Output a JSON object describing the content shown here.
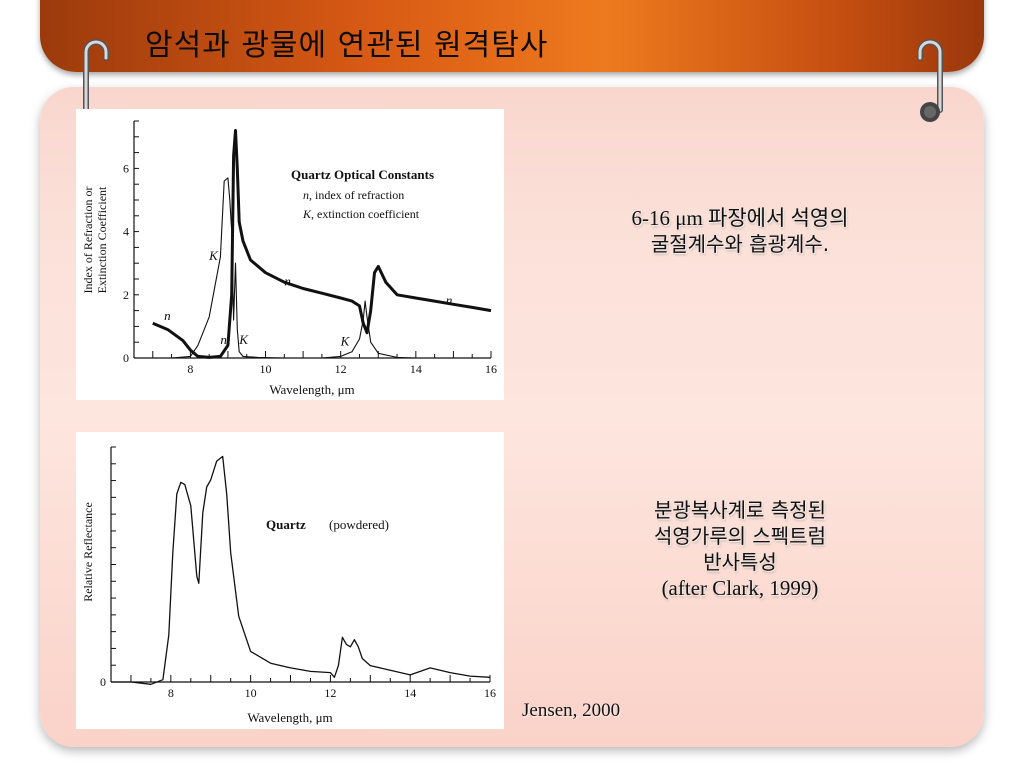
{
  "slide": {
    "title": "암석과 광물에 연관된 원격탐사",
    "caption1_line1": "6-16 μm 파장에서 석영의",
    "caption1_line2": "굴절계수와 흡광계수.",
    "caption2_line1": "분광복사계로 측정된",
    "caption2_line2": "석영가루의 스펙트럼",
    "caption2_line3": "반사특성",
    "caption2_line4": "(after Clark, 1999)",
    "credit": "Jensen, 2000"
  },
  "chart_data": [
    {
      "type": "line",
      "title": "Quartz Optical Constants",
      "legend_n": ", index of refraction",
      "legend_k": ", extinction coefficient",
      "legend_n_symbol": "n",
      "legend_k_symbol": "K",
      "ylabel_line1": "Index of Refraction or",
      "ylabel_line2": "Extinction Coefficient",
      "xlabel": "Wavelength, μm",
      "xlim": [
        6.5,
        16
      ],
      "ylim": [
        0,
        7.5
      ],
      "xticks": [
        8,
        10,
        12,
        14,
        16
      ],
      "yticks": [
        0,
        2,
        4,
        6
      ],
      "curve_labels": [
        {
          "text": "n",
          "x": 7.3,
          "y": 1.2
        },
        {
          "text": "K",
          "x": 8.5,
          "y": 3.1
        },
        {
          "text": "n",
          "x": 8.8,
          "y": 0.45
        },
        {
          "text": "K",
          "x": 9.3,
          "y": 0.45
        },
        {
          "text": "n",
          "x": 10.5,
          "y": 2.3
        },
        {
          "text": "K",
          "x": 12.0,
          "y": 0.4
        },
        {
          "text": "n",
          "x": 14.8,
          "y": 1.7
        }
      ],
      "series": [
        {
          "name": "n",
          "x": [
            7.0,
            7.4,
            7.8,
            8.0,
            8.2,
            8.5,
            8.8,
            9.0,
            9.1,
            9.15,
            9.2,
            9.25,
            9.3,
            9.4,
            9.6,
            10.0,
            10.5,
            11.0,
            11.5,
            12.0,
            12.3,
            12.5,
            12.6,
            12.7,
            12.8,
            12.9,
            13.0,
            13.2,
            13.5,
            14.0,
            14.5,
            15.0,
            15.5,
            16.0
          ],
          "values": [
            1.1,
            0.9,
            0.55,
            0.25,
            0.05,
            0.02,
            0.05,
            0.4,
            2.0,
            6.4,
            7.2,
            6.0,
            4.3,
            3.7,
            3.1,
            2.7,
            2.4,
            2.2,
            2.05,
            1.9,
            1.8,
            1.65,
            1.1,
            0.8,
            1.5,
            2.7,
            2.9,
            2.4,
            2.0,
            1.9,
            1.8,
            1.7,
            1.6,
            1.5
          ]
        },
        {
          "name": "K",
          "x": [
            7.5,
            8.0,
            8.2,
            8.5,
            8.8,
            8.9,
            9.0,
            9.05,
            9.1,
            9.15,
            9.2,
            9.25,
            9.3,
            9.4,
            9.8,
            10.5,
            11.5,
            12.0,
            12.3,
            12.5,
            12.6,
            12.65,
            12.7,
            12.8,
            13.0,
            13.5,
            14.0
          ],
          "values": [
            0.0,
            0.05,
            0.4,
            1.3,
            3.2,
            5.6,
            5.7,
            5.0,
            4.0,
            1.2,
            3.0,
            0.9,
            0.2,
            0.05,
            0.02,
            0.0,
            0.0,
            0.05,
            0.2,
            0.6,
            1.2,
            1.8,
            1.3,
            0.5,
            0.15,
            0.02,
            0.0
          ]
        }
      ]
    },
    {
      "type": "line",
      "title": "Quartz",
      "subtitle": "(powdered)",
      "ylabel": "Relative Reflectance",
      "xlabel": "Wavelength, μm",
      "xlim": [
        6.5,
        16
      ],
      "ylim": [
        0,
        1
      ],
      "xticks": [
        8,
        10,
        12,
        14,
        16
      ],
      "yticks": [
        0
      ],
      "series": [
        {
          "x": [
            6.5,
            7.0,
            7.5,
            7.8,
            7.95,
            8.05,
            8.15,
            8.25,
            8.35,
            8.5,
            8.6,
            8.65,
            8.7,
            8.8,
            8.9,
            9.0,
            9.15,
            9.3,
            9.4,
            9.5,
            9.7,
            10.0,
            10.5,
            11.0,
            11.5,
            12.0,
            12.1,
            12.2,
            12.3,
            12.4,
            12.5,
            12.6,
            12.7,
            12.8,
            13.0,
            13.5,
            14.0,
            14.5,
            15.0,
            15.5,
            16.0
          ],
          "values": [
            0.0,
            0.0,
            -0.01,
            0.01,
            0.2,
            0.55,
            0.8,
            0.85,
            0.84,
            0.75,
            0.55,
            0.45,
            0.42,
            0.72,
            0.83,
            0.86,
            0.94,
            0.96,
            0.8,
            0.55,
            0.28,
            0.13,
            0.08,
            0.06,
            0.045,
            0.04,
            0.02,
            0.07,
            0.19,
            0.16,
            0.15,
            0.18,
            0.15,
            0.1,
            0.07,
            0.05,
            0.03,
            0.06,
            0.04,
            0.025,
            0.02
          ]
        }
      ]
    }
  ]
}
